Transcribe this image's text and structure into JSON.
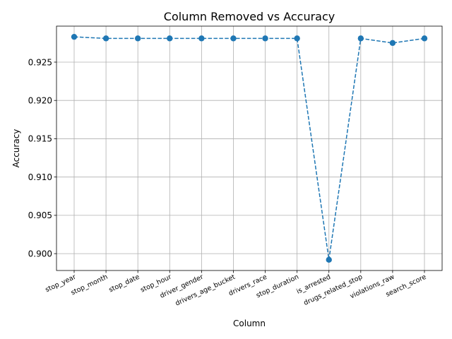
{
  "chart_data": {
    "type": "line",
    "title": "Column Removed vs Accuracy",
    "xlabel": "Column",
    "ylabel": "Accuracy",
    "categories": [
      "stop_year",
      "stop_month",
      "stop_date",
      "stop_hour",
      "driver_gender",
      "drivers_age_bucket",
      "drivers_race",
      "stop_duration",
      "is_arrested",
      "drugs_related_stop",
      "violations_raw",
      "search_score"
    ],
    "series": [
      {
        "values": [
          0.9283,
          0.9281,
          0.9281,
          0.9281,
          0.9281,
          0.9281,
          0.9281,
          0.9281,
          0.8992,
          0.9281,
          0.9275,
          0.9281
        ],
        "color": "#1f77b4",
        "line_style": "dashed",
        "marker": "circle"
      }
    ],
    "ylim": [
      0.8978,
      0.9297
    ],
    "yticks": [
      0.9,
      0.905,
      0.91,
      0.915,
      0.92,
      0.925
    ],
    "ytick_labels": [
      "0.900",
      "0.905",
      "0.910",
      "0.915",
      "0.920",
      "0.925"
    ],
    "grid": true,
    "legend": false
  }
}
